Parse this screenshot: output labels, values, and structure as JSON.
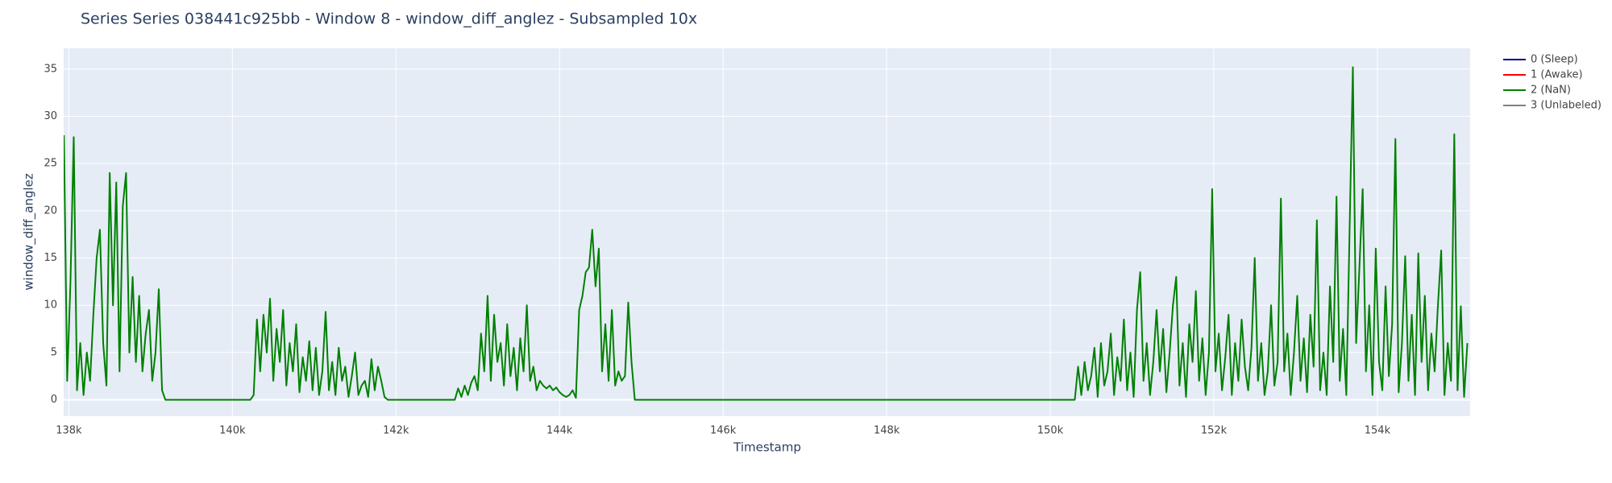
{
  "chart_data": {
    "type": "line",
    "title": "Series Series 038441c925bb - Window 8 - window_diff_anglez - Subsampled 10x",
    "x_label": "Timestamp",
    "y_label": "window_diff_anglez",
    "xlim": [
      137937,
      155134
    ],
    "ylim": [
      -1.74,
      37.2
    ],
    "xticks": [
      {
        "value": 138000,
        "label": "138k"
      },
      {
        "value": 140000,
        "label": "140k"
      },
      {
        "value": 142000,
        "label": "142k"
      },
      {
        "value": 144000,
        "label": "144k"
      },
      {
        "value": 146000,
        "label": "146k"
      },
      {
        "value": 148000,
        "label": "148k"
      },
      {
        "value": 150000,
        "label": "150k"
      },
      {
        "value": 152000,
        "label": "152k"
      },
      {
        "value": 154000,
        "label": "154k"
      }
    ],
    "yticks": [
      0,
      5,
      10,
      15,
      20,
      25,
      30,
      35
    ],
    "grid": true,
    "legend_position": "right",
    "series": [
      {
        "name": "0 (Sleep)",
        "color": "#00008b",
        "x": [],
        "values": []
      },
      {
        "name": "1 (Awake)",
        "color": "#ff0000",
        "x": [],
        "values": []
      },
      {
        "name": "2 (NaN)",
        "color": "#008000",
        "x": [
          137940,
          137980,
          138020,
          138060,
          138100,
          138140,
          138180,
          138220,
          138260,
          138300,
          138340,
          138380,
          138420,
          138460,
          138500,
          138540,
          138580,
          138620,
          138660,
          138700,
          138740,
          138780,
          138820,
          138860,
          138900,
          138940,
          138980,
          139020,
          139060,
          139100,
          139140,
          139180,
          140220,
          140260,
          140300,
          140340,
          140380,
          140420,
          140460,
          140500,
          140540,
          140580,
          140620,
          140660,
          140700,
          140740,
          140780,
          140820,
          140860,
          140900,
          140940,
          140980,
          141020,
          141060,
          141100,
          141140,
          141180,
          141220,
          141260,
          141300,
          141340,
          141380,
          141420,
          141460,
          141500,
          141540,
          141580,
          141620,
          141660,
          141700,
          141740,
          141780,
          141820,
          141860,
          141900,
          142720,
          142760,
          142800,
          142840,
          142880,
          142920,
          142960,
          143000,
          143040,
          143080,
          143120,
          143160,
          143200,
          143240,
          143280,
          143320,
          143360,
          143400,
          143440,
          143480,
          143520,
          143560,
          143600,
          143640,
          143680,
          143720,
          143760,
          143800,
          143840,
          143880,
          143920,
          143960,
          144000,
          144040,
          144080,
          144120,
          144160,
          144200,
          144240,
          144280,
          144320,
          144360,
          144400,
          144440,
          144480,
          144520,
          144560,
          144600,
          144640,
          144680,
          144720,
          144760,
          144800,
          144840,
          144880,
          144920,
          150300,
          150340,
          150380,
          150420,
          150460,
          150500,
          150540,
          150580,
          150620,
          150660,
          150700,
          150740,
          150780,
          150820,
          150860,
          150900,
          150940,
          150980,
          151020,
          151060,
          151100,
          151140,
          151180,
          151220,
          151260,
          151300,
          151340,
          151380,
          151420,
          151460,
          151500,
          151540,
          151580,
          151620,
          151660,
          151700,
          151740,
          151780,
          151820,
          151860,
          151900,
          151940,
          151980,
          152020,
          152060,
          152100,
          152140,
          152180,
          152220,
          152260,
          152300,
          152340,
          152380,
          152420,
          152460,
          152500,
          152540,
          152580,
          152620,
          152660,
          152700,
          152740,
          152780,
          152820,
          152860,
          152900,
          152940,
          152980,
          153020,
          153060,
          153100,
          153140,
          153180,
          153220,
          153260,
          153300,
          153340,
          153380,
          153420,
          153460,
          153500,
          153540,
          153580,
          153620,
          153660,
          153700,
          153740,
          153780,
          153820,
          153860,
          153900,
          153940,
          153980,
          154020,
          154060,
          154100,
          154140,
          154180,
          154220,
          154260,
          154300,
          154340,
          154380,
          154420,
          154460,
          154500,
          154540,
          154580,
          154620,
          154660,
          154700,
          154740,
          154780,
          154820,
          154860,
          154900,
          154940,
          154980,
          155020,
          155060,
          155100
        ],
        "values": [
          28,
          2,
          12.5,
          27.8,
          1,
          6,
          0.5,
          5,
          2,
          9,
          15,
          18,
          6,
          1.5,
          24,
          10,
          23,
          3,
          20.5,
          24,
          5,
          13,
          4,
          11,
          3,
          7,
          9.5,
          2,
          5,
          11.7,
          1,
          0,
          0,
          0.5,
          8.5,
          3,
          9,
          5,
          10.7,
          2,
          7.5,
          4,
          9.5,
          1.5,
          6,
          3,
          8,
          0.8,
          4.5,
          2,
          6.2,
          1,
          5.5,
          0.5,
          3,
          9.3,
          1,
          4,
          0.5,
          5.5,
          2,
          3.5,
          0.3,
          2.5,
          5,
          0.5,
          1.5,
          2,
          0.3,
          4.3,
          1,
          3.5,
          2,
          0.3,
          0,
          0,
          1.2,
          0.3,
          1.5,
          0.5,
          1.8,
          2.5,
          1,
          7,
          3,
          11,
          2,
          9,
          4,
          6,
          1.5,
          8,
          2.5,
          5.5,
          1,
          6.5,
          3,
          10,
          2,
          3.5,
          1,
          2,
          1.5,
          1.2,
          1.5,
          1,
          1.3,
          0.8,
          0.5,
          0.3,
          0.5,
          1,
          0.2,
          9.5,
          11,
          13.5,
          14,
          18,
          12,
          16,
          3,
          8,
          2,
          9.5,
          1.5,
          3,
          2,
          2.5,
          10.3,
          4,
          0,
          0,
          3.5,
          0.5,
          4,
          1,
          2.5,
          5.5,
          0.3,
          6,
          1.5,
          3,
          7,
          0.5,
          4.5,
          2,
          8.5,
          1,
          5,
          0.3,
          9.5,
          13.5,
          2,
          6,
          0.5,
          4,
          9.5,
          3,
          7.5,
          0.8,
          5,
          10,
          13,
          1.5,
          6,
          0.3,
          8,
          4,
          11.5,
          2,
          6.5,
          0.5,
          5,
          22.3,
          3,
          7,
          1,
          4.5,
          9,
          0.5,
          6,
          2,
          8.5,
          3.5,
          1,
          5.5,
          15,
          2,
          6,
          0.5,
          3,
          10,
          1.5,
          4,
          21.3,
          3,
          7,
          0.5,
          5,
          11,
          2,
          6.5,
          0.8,
          9,
          3.5,
          19,
          1,
          5,
          0.5,
          12,
          4,
          21.5,
          2,
          7.5,
          0.5,
          18,
          35.2,
          6,
          14,
          22.3,
          3,
          10,
          0.5,
          16,
          4,
          1,
          12,
          2.5,
          8,
          27.6,
          0.8,
          6,
          15.2,
          2,
          9,
          0.5,
          15.5,
          4,
          11,
          1,
          7,
          3,
          10,
          15.8,
          0.5,
          6,
          2,
          28.1,
          1,
          9.9,
          0.3,
          6
        ]
      },
      {
        "name": "3 (Unlabeled)",
        "color": "#808080",
        "x": [],
        "values": []
      }
    ]
  }
}
